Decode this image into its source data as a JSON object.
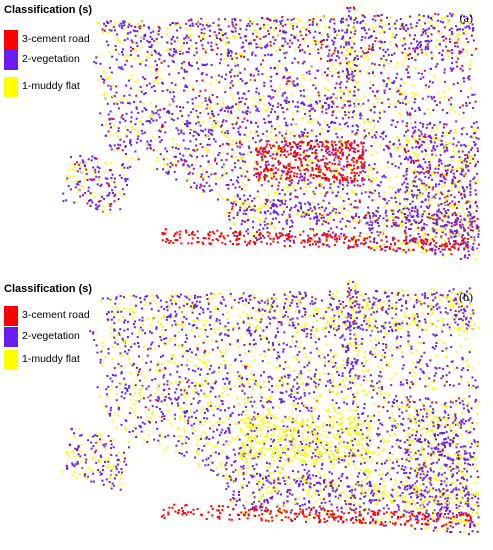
{
  "legend": {
    "title": "Classification (s)",
    "classes": [
      {
        "label": "3-cement road",
        "color": "#ff0000"
      },
      {
        "label": "2-vegetation",
        "color": "#6a1bf0"
      },
      {
        "label": "1-muddy flat",
        "color": "#ffff00"
      }
    ]
  },
  "panels": [
    {
      "label": "(a)",
      "mix": {
        "vegetation": 0.62,
        "muddy": 0.3,
        "road": 0.08
      }
    },
    {
      "label": "(b)",
      "mix": {
        "vegetation": 0.55,
        "muddy": 0.43,
        "road": 0.02
      }
    }
  ]
}
